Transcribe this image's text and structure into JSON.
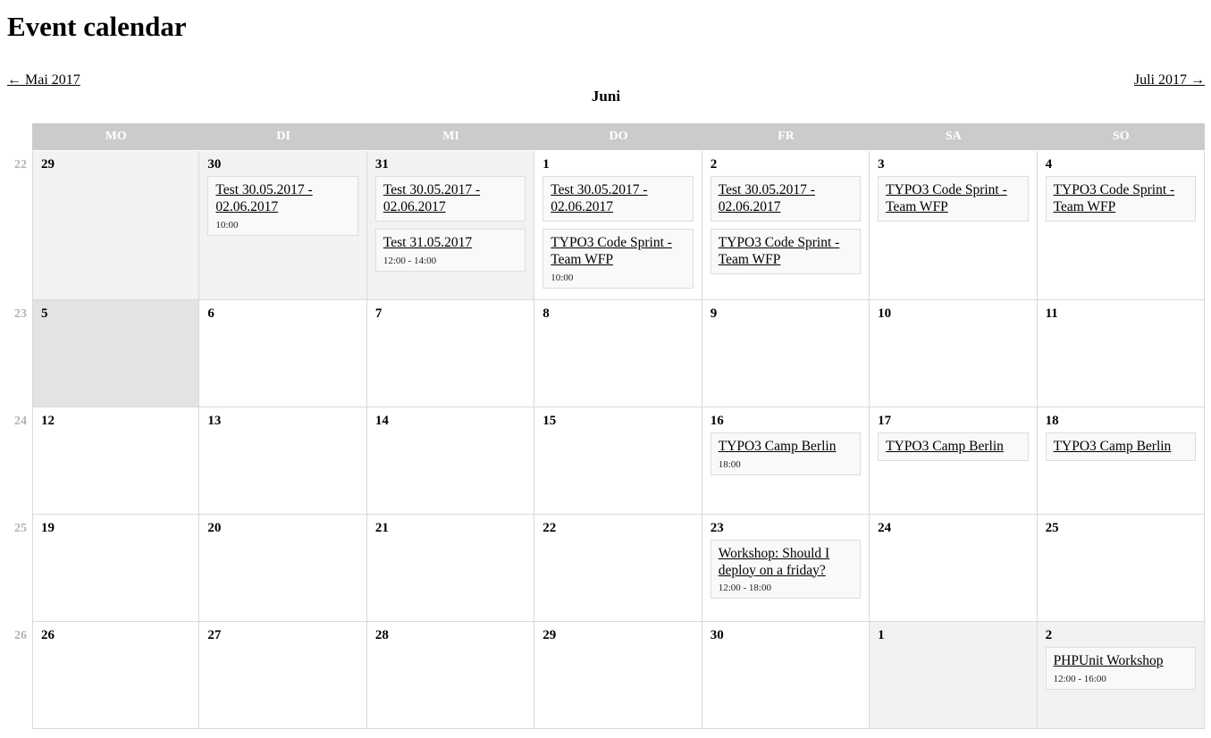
{
  "page": {
    "title": "Event calendar"
  },
  "nav": {
    "prev_label": "← Mai 2017",
    "month_label": "Juni",
    "next_label": "Juli 2017 →"
  },
  "colors": {
    "header_bg": "#cbcbcb",
    "header_text": "#ffffff",
    "other_month_bg": "#f2f2f2",
    "today_bg": "#e3e3e3",
    "grid_border": "#d9d9d9",
    "event_bg": "#f9f9f9",
    "event_border": "#dddddd",
    "weeknum_color": "#b3b3b3"
  },
  "calendar": {
    "day_headers": [
      "MO",
      "DI",
      "MI",
      "DO",
      "FR",
      "SA",
      "SO"
    ],
    "weeks": [
      {
        "week_number": "22",
        "days": [
          {
            "num": "29",
            "type": "other",
            "events": []
          },
          {
            "num": "30",
            "type": "other",
            "events": [
              {
                "title": "Test 30.05.2017 - 02.06.2017",
                "time": "10:00"
              }
            ]
          },
          {
            "num": "31",
            "type": "other",
            "events": [
              {
                "title": "Test 30.05.2017 - 02.06.2017"
              },
              {
                "title": "Test 31.05.2017",
                "time": "12:00 - 14:00"
              }
            ]
          },
          {
            "num": "1",
            "type": "current",
            "events": [
              {
                "title": "Test 30.05.2017 - 02.06.2017"
              },
              {
                "title": "TYPO3 Code Sprint - Team WFP",
                "time": "10:00"
              }
            ]
          },
          {
            "num": "2",
            "type": "current",
            "events": [
              {
                "title": "Test 30.05.2017 - 02.06.2017"
              },
              {
                "title": "TYPO3 Code Sprint - Team WFP"
              }
            ]
          },
          {
            "num": "3",
            "type": "current",
            "events": [
              {
                "title": "TYPO3 Code Sprint - Team WFP"
              }
            ]
          },
          {
            "num": "4",
            "type": "current",
            "events": [
              {
                "title": "TYPO3 Code Sprint - Team WFP"
              }
            ]
          }
        ]
      },
      {
        "week_number": "23",
        "days": [
          {
            "num": "5",
            "type": "today",
            "events": []
          },
          {
            "num": "6",
            "type": "current",
            "events": []
          },
          {
            "num": "7",
            "type": "current",
            "events": []
          },
          {
            "num": "8",
            "type": "current",
            "events": []
          },
          {
            "num": "9",
            "type": "current",
            "events": []
          },
          {
            "num": "10",
            "type": "current",
            "events": []
          },
          {
            "num": "11",
            "type": "current",
            "events": []
          }
        ]
      },
      {
        "week_number": "24",
        "days": [
          {
            "num": "12",
            "type": "current",
            "events": []
          },
          {
            "num": "13",
            "type": "current",
            "events": []
          },
          {
            "num": "14",
            "type": "current",
            "events": []
          },
          {
            "num": "15",
            "type": "current",
            "events": []
          },
          {
            "num": "16",
            "type": "current",
            "events": [
              {
                "title": "TYPO3 Camp Berlin",
                "time": "18:00"
              }
            ]
          },
          {
            "num": "17",
            "type": "current",
            "events": [
              {
                "title": "TYPO3 Camp Berlin"
              }
            ]
          },
          {
            "num": "18",
            "type": "current",
            "events": [
              {
                "title": "TYPO3 Camp Berlin"
              }
            ]
          }
        ]
      },
      {
        "week_number": "25",
        "days": [
          {
            "num": "19",
            "type": "current",
            "events": []
          },
          {
            "num": "20",
            "type": "current",
            "events": []
          },
          {
            "num": "21",
            "type": "current",
            "events": []
          },
          {
            "num": "22",
            "type": "current",
            "events": []
          },
          {
            "num": "23",
            "type": "current",
            "events": [
              {
                "title": "Workshop: Should I deploy on a friday?",
                "time": "12:00 - 18:00"
              }
            ]
          },
          {
            "num": "24",
            "type": "current",
            "events": []
          },
          {
            "num": "25",
            "type": "current",
            "events": []
          }
        ]
      },
      {
        "week_number": "26",
        "days": [
          {
            "num": "26",
            "type": "current",
            "events": []
          },
          {
            "num": "27",
            "type": "current",
            "events": []
          },
          {
            "num": "28",
            "type": "current",
            "events": []
          },
          {
            "num": "29",
            "type": "current",
            "events": []
          },
          {
            "num": "30",
            "type": "current",
            "events": []
          },
          {
            "num": "1",
            "type": "other",
            "events": []
          },
          {
            "num": "2",
            "type": "other",
            "events": [
              {
                "title": "PHPUnit Workshop",
                "time": "12:00 - 16:00"
              }
            ]
          }
        ]
      }
    ]
  }
}
